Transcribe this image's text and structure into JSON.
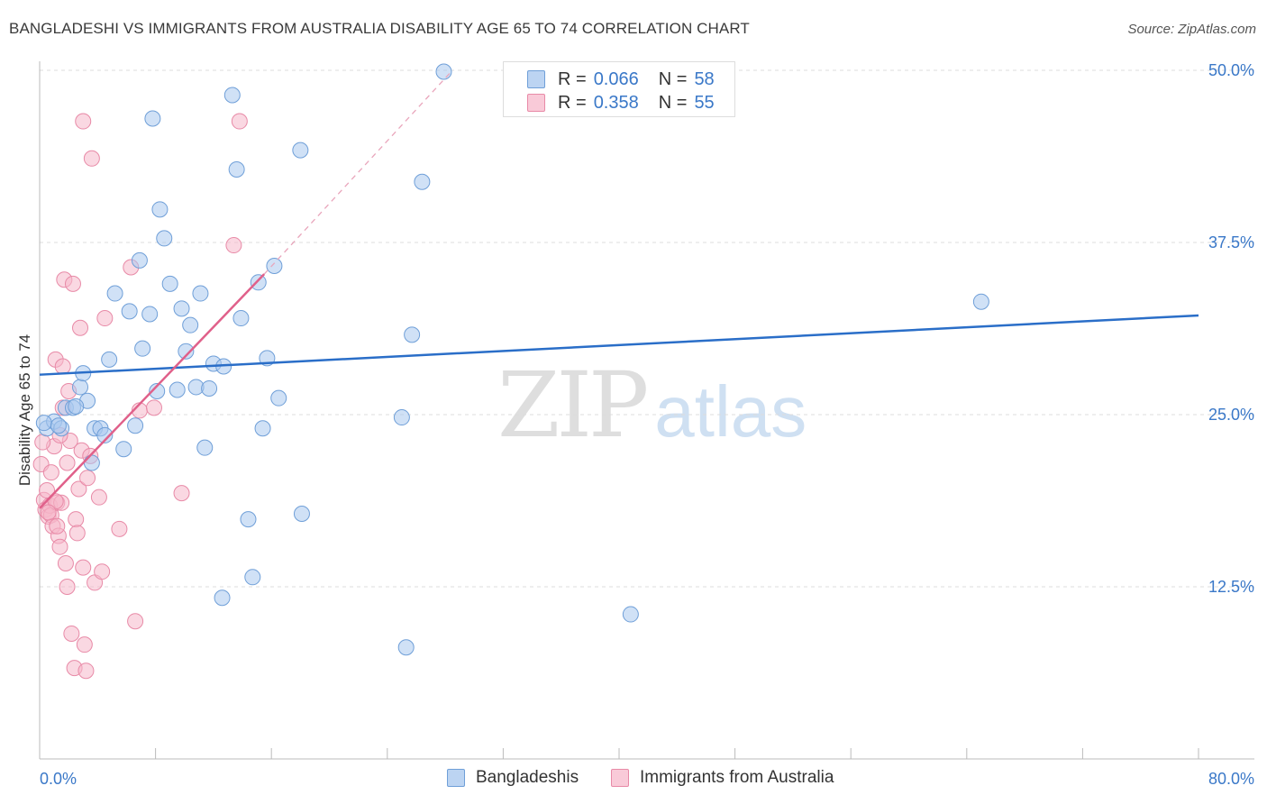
{
  "title": "BANGLADESHI VS IMMIGRANTS FROM AUSTRALIA DISABILITY AGE 65 TO 74 CORRELATION CHART",
  "source": "Source: ZipAtlas.com",
  "watermark": {
    "zip": "ZIP",
    "atlas": "atlas"
  },
  "legend_top": {
    "rows": [
      {
        "r_label": "R =",
        "r_value": "0.066",
        "n_label": "N =",
        "n_value": "58"
      },
      {
        "r_label": "R =",
        "r_value": "0.358",
        "n_label": "N =",
        "n_value": "55"
      }
    ]
  },
  "colors": {
    "blue_fill": "#a9c8ee",
    "blue_stroke": "#6f9fd8",
    "blue_line": "#2a6ec8",
    "pink_fill": "#f6b8cb",
    "pink_stroke": "#e88aa7",
    "pink_line": "#e0608a",
    "axis_text": "#3a78c8",
    "grid": "#dcdcdc"
  },
  "chart_data": {
    "type": "scatter",
    "title": "BANGLADESHI VS IMMIGRANTS FROM AUSTRALIA DISABILITY AGE 65 TO 74 CORRELATION CHART",
    "xlabel": "",
    "ylabel": "Disability Age 65 to 74",
    "xlim": [
      0,
      80
    ],
    "ylim": [
      0,
      50
    ],
    "x_tick_labels": [
      "0.0%",
      "80.0%"
    ],
    "y_ticks": [
      12.5,
      25.0,
      37.5,
      50.0
    ],
    "y_tick_labels": [
      "12.5%",
      "25.0%",
      "37.5%",
      "50.0%"
    ],
    "grid": true,
    "series": [
      {
        "name": "Bangladeshis",
        "color": "#a9c8ee",
        "trend": {
          "x0": 0,
          "y0": 27.9,
          "x1": 80,
          "y1": 32.2,
          "style": "solid"
        },
        "points": [
          [
            0.5,
            24.0
          ],
          [
            1.0,
            24.5
          ],
          [
            1.5,
            24.0
          ],
          [
            1.8,
            25.5
          ],
          [
            2.3,
            25.5
          ],
          [
            2.8,
            27.0
          ],
          [
            3.0,
            28.0
          ],
          [
            3.3,
            26.0
          ],
          [
            3.8,
            24.0
          ],
          [
            4.2,
            24.0
          ],
          [
            4.5,
            23.5
          ],
          [
            4.8,
            29.0
          ],
          [
            5.2,
            33.8
          ],
          [
            5.8,
            22.5
          ],
          [
            6.2,
            32.5
          ],
          [
            6.6,
            24.2
          ],
          [
            6.9,
            36.2
          ],
          [
            7.1,
            29.8
          ],
          [
            7.6,
            32.3
          ],
          [
            7.8,
            46.5
          ],
          [
            8.1,
            26.7
          ],
          [
            8.3,
            39.9
          ],
          [
            8.6,
            37.8
          ],
          [
            9.0,
            34.5
          ],
          [
            9.5,
            26.8
          ],
          [
            9.8,
            32.7
          ],
          [
            10.1,
            29.6
          ],
          [
            10.4,
            31.5
          ],
          [
            10.8,
            27.0
          ],
          [
            11.1,
            33.8
          ],
          [
            11.4,
            22.6
          ],
          [
            11.7,
            26.9
          ],
          [
            12.0,
            28.7
          ],
          [
            12.7,
            28.5
          ],
          [
            13.3,
            48.2
          ],
          [
            13.6,
            42.8
          ],
          [
            13.9,
            32.0
          ],
          [
            14.4,
            17.4
          ],
          [
            14.7,
            13.2
          ],
          [
            15.1,
            34.6
          ],
          [
            15.4,
            24.0
          ],
          [
            15.7,
            29.1
          ],
          [
            16.2,
            35.8
          ],
          [
            16.5,
            26.2
          ],
          [
            18.0,
            44.2
          ],
          [
            18.1,
            17.8
          ],
          [
            25.0,
            24.8
          ],
          [
            25.3,
            8.1
          ],
          [
            25.7,
            30.8
          ],
          [
            26.4,
            41.9
          ],
          [
            27.9,
            49.9
          ],
          [
            12.6,
            11.7
          ],
          [
            2.5,
            25.6
          ],
          [
            3.6,
            21.5
          ],
          [
            40.8,
            10.5
          ],
          [
            65.0,
            33.2
          ],
          [
            0.3,
            24.4
          ],
          [
            1.3,
            24.2
          ]
        ]
      },
      {
        "name": "Immigrants from Australia",
        "color": "#f6b8cb",
        "trend": {
          "x0": 0,
          "y0": 18.2,
          "x1": 15.5,
          "y1": 35.2,
          "style": "solid",
          "ext_x1": 28.5,
          "ext_y1": 50.0
        },
        "points": [
          [
            0.1,
            21.4
          ],
          [
            0.3,
            18.8
          ],
          [
            0.4,
            18.1
          ],
          [
            0.6,
            17.6
          ],
          [
            0.7,
            18.4
          ],
          [
            0.8,
            17.7
          ],
          [
            0.9,
            16.9
          ],
          [
            1.0,
            22.7
          ],
          [
            1.1,
            29.0
          ],
          [
            1.2,
            18.6
          ],
          [
            1.3,
            16.2
          ],
          [
            1.4,
            15.4
          ],
          [
            1.5,
            18.6
          ],
          [
            1.6,
            28.5
          ],
          [
            1.7,
            34.8
          ],
          [
            1.8,
            14.2
          ],
          [
            1.9,
            12.5
          ],
          [
            2.0,
            26.7
          ],
          [
            2.2,
            9.1
          ],
          [
            2.4,
            6.6
          ],
          [
            2.5,
            17.4
          ],
          [
            2.6,
            16.4
          ],
          [
            2.7,
            19.6
          ],
          [
            2.8,
            31.3
          ],
          [
            2.9,
            22.4
          ],
          [
            3.0,
            13.9
          ],
          [
            3.1,
            8.3
          ],
          [
            3.2,
            6.4
          ],
          [
            3.3,
            20.4
          ],
          [
            3.5,
            22.0
          ],
          [
            3.6,
            43.6
          ],
          [
            3.8,
            12.8
          ],
          [
            4.1,
            19.0
          ],
          [
            4.3,
            13.6
          ],
          [
            4.5,
            32.0
          ],
          [
            5.5,
            16.7
          ],
          [
            6.3,
            35.7
          ],
          [
            6.6,
            10.0
          ],
          [
            6.9,
            25.3
          ],
          [
            7.9,
            25.5
          ],
          [
            9.8,
            19.3
          ],
          [
            13.4,
            37.3
          ],
          [
            13.8,
            46.3
          ],
          [
            1.1,
            18.7
          ],
          [
            0.5,
            19.5
          ],
          [
            1.2,
            16.9
          ],
          [
            1.6,
            25.5
          ],
          [
            2.1,
            23.1
          ],
          [
            1.4,
            23.5
          ],
          [
            0.8,
            20.8
          ],
          [
            2.3,
            34.5
          ],
          [
            1.9,
            21.5
          ],
          [
            3.0,
            46.3
          ],
          [
            0.2,
            23.0
          ],
          [
            0.6,
            17.9
          ]
        ]
      }
    ]
  },
  "legend_bottom": [
    "Bangladeshis",
    "Immigrants from Australia"
  ]
}
